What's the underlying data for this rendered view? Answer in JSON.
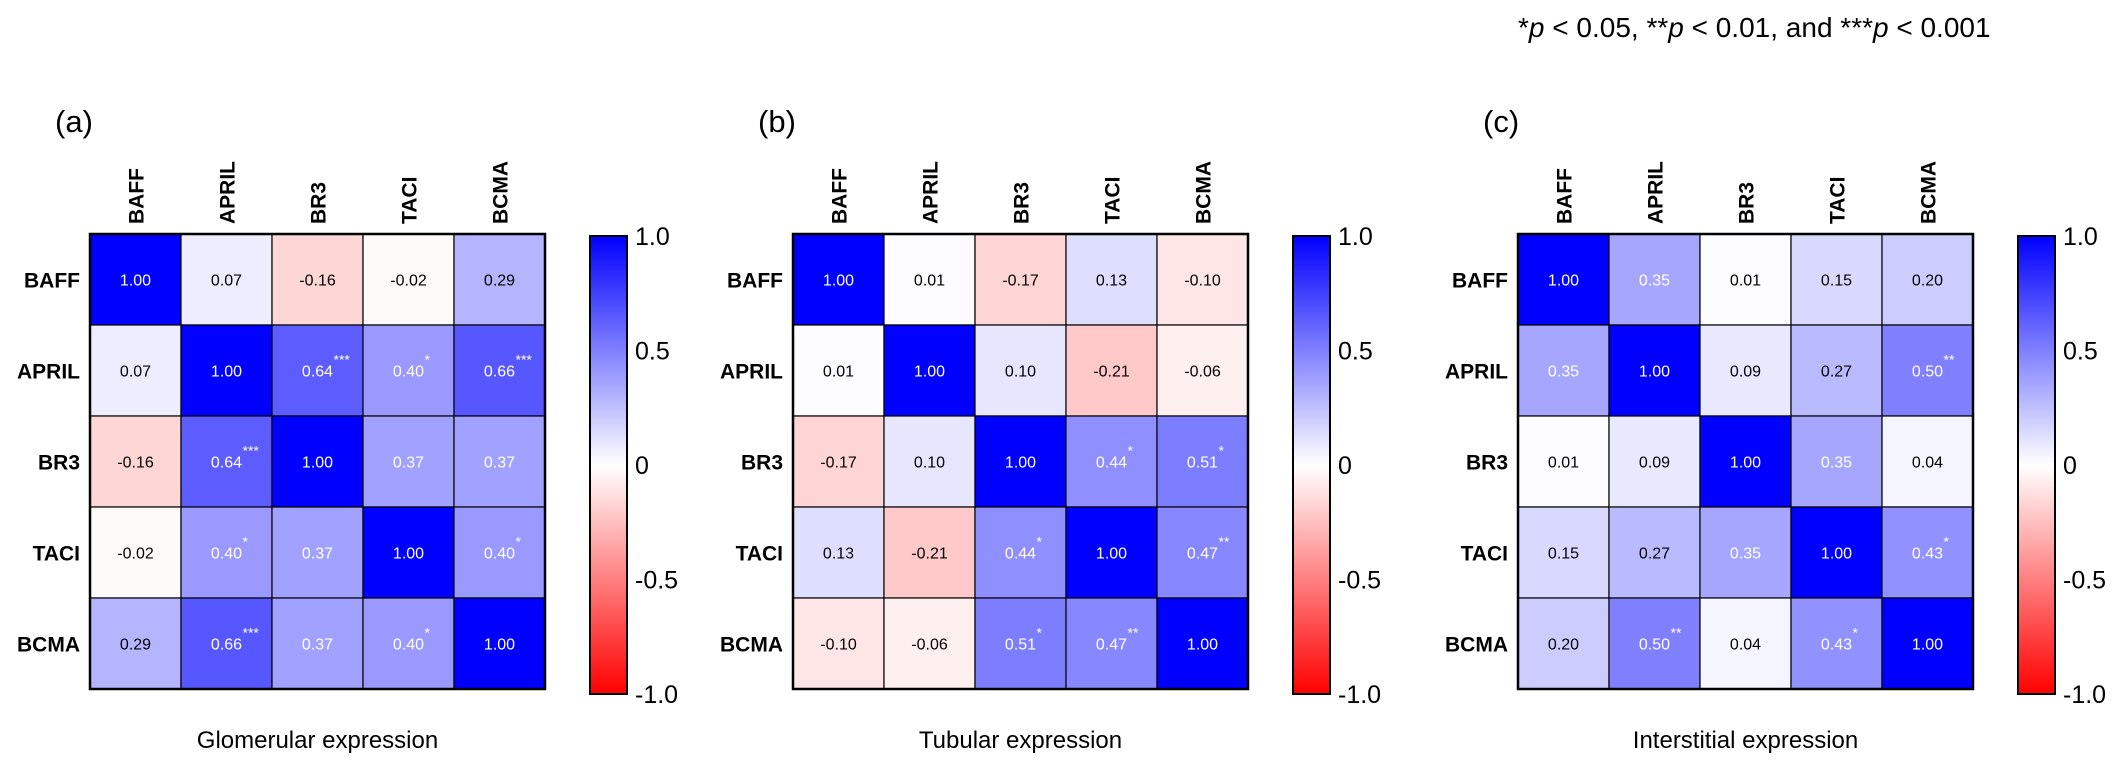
{
  "significance_note": {
    "p1_stars": "*",
    "p1_value": " < 0.05,  ",
    "p2_stars": "**",
    "p2_value": " < 0.01, and ",
    "p3_stars": "***",
    "p3_value": " < 0.001",
    "p_symbol": "p"
  },
  "colors": {
    "positive": "#0000ff",
    "zero": "#ffffff",
    "negative": "#ff0000",
    "grid": "#000000"
  },
  "chart_data": [
    {
      "type": "heatmap",
      "panel_label": "(a)",
      "title": "Glomerular expression",
      "labels": [
        "BAFF",
        "APRIL",
        "BR3",
        "TACI",
        "BCMA"
      ],
      "colorbar": {
        "range": [
          -1.0,
          1.0
        ],
        "ticks": [
          "1.0",
          "0.5",
          "0",
          "-0.5",
          "-1.0"
        ],
        "tick_values": [
          1.0,
          0.5,
          0,
          -0.5,
          -1.0
        ]
      },
      "values": [
        [
          1.0,
          0.07,
          -0.16,
          -0.02,
          0.29
        ],
        [
          0.07,
          1.0,
          0.64,
          0.4,
          0.66
        ],
        [
          -0.16,
          0.64,
          1.0,
          0.37,
          0.37
        ],
        [
          -0.02,
          0.4,
          0.37,
          1.0,
          0.4
        ],
        [
          0.29,
          0.66,
          0.37,
          0.4,
          1.0
        ]
      ],
      "display": [
        [
          "1.00",
          "0.07",
          "-0.16",
          "-0.02",
          "0.29"
        ],
        [
          "0.07",
          "1.00",
          "0.64",
          "0.40",
          "0.66"
        ],
        [
          "-0.16",
          "0.64",
          "1.00",
          "0.37",
          "0.37"
        ],
        [
          "-0.02",
          "0.40",
          "0.37",
          "1.00",
          "0.40"
        ],
        [
          "0.29",
          "0.66",
          "0.37",
          "0.40",
          "1.00"
        ]
      ],
      "stars": [
        [
          "",
          "",
          "",
          "",
          ""
        ],
        [
          "",
          "",
          "***",
          "*",
          "***"
        ],
        [
          "",
          "***",
          "",
          "",
          ""
        ],
        [
          "",
          "*",
          "",
          "",
          "*"
        ],
        [
          "",
          "***",
          "",
          "*",
          ""
        ]
      ]
    },
    {
      "type": "heatmap",
      "panel_label": "(b)",
      "title": "Tubular expression",
      "labels": [
        "BAFF",
        "APRIL",
        "BR3",
        "TACI",
        "BCMA"
      ],
      "colorbar": {
        "range": [
          -1.0,
          1.0
        ],
        "ticks": [
          "1.0",
          "0.5",
          "0",
          "-0.5",
          "-1.0"
        ],
        "tick_values": [
          1.0,
          0.5,
          0,
          -0.5,
          -1.0
        ]
      },
      "values": [
        [
          1.0,
          0.01,
          -0.17,
          0.13,
          -0.1
        ],
        [
          0.01,
          1.0,
          0.1,
          -0.21,
          -0.06
        ],
        [
          -0.17,
          0.1,
          1.0,
          0.44,
          0.51
        ],
        [
          0.13,
          -0.21,
          0.44,
          1.0,
          0.47
        ],
        [
          -0.1,
          -0.06,
          0.51,
          0.47,
          1.0
        ]
      ],
      "display": [
        [
          "1.00",
          "0.01",
          "-0.17",
          "0.13",
          "-0.10"
        ],
        [
          "0.01",
          "1.00",
          "0.10",
          "-0.21",
          "-0.06"
        ],
        [
          "-0.17",
          "0.10",
          "1.00",
          "0.44",
          "0.51"
        ],
        [
          "0.13",
          "-0.21",
          "0.44",
          "1.00",
          "0.47"
        ],
        [
          "-0.10",
          "-0.06",
          "0.51",
          "0.47",
          "1.00"
        ]
      ],
      "stars": [
        [
          "",
          "",
          "",
          "",
          ""
        ],
        [
          "",
          "",
          "",
          "",
          ""
        ],
        [
          "",
          "",
          "",
          "*",
          "*"
        ],
        [
          "",
          "",
          "*",
          "",
          "**"
        ],
        [
          "",
          "",
          "*",
          "**",
          ""
        ]
      ]
    },
    {
      "type": "heatmap",
      "panel_label": "(c)",
      "title": "Interstitial expression",
      "labels": [
        "BAFF",
        "APRIL",
        "BR3",
        "TACI",
        "BCMA"
      ],
      "colorbar": {
        "range": [
          -1.0,
          1.0
        ],
        "ticks": [
          "1.0",
          "0.5",
          "0",
          "-0.5",
          "-1.0"
        ],
        "tick_values": [
          1.0,
          0.5,
          0,
          -0.5,
          -1.0
        ]
      },
      "values": [
        [
          1.0,
          0.35,
          0.01,
          0.15,
          0.2
        ],
        [
          0.35,
          1.0,
          0.09,
          0.27,
          0.5
        ],
        [
          0.01,
          0.09,
          1.0,
          0.35,
          0.04
        ],
        [
          0.15,
          0.27,
          0.35,
          1.0,
          0.43
        ],
        [
          0.2,
          0.5,
          0.04,
          0.43,
          1.0
        ]
      ],
      "display": [
        [
          "1.00",
          "0.35",
          "0.01",
          "0.15",
          "0.20"
        ],
        [
          "0.35",
          "1.00",
          "0.09",
          "0.27",
          "0.50"
        ],
        [
          "0.01",
          "0.09",
          "1.00",
          "0.35",
          "0.04"
        ],
        [
          "0.15",
          "0.27",
          "0.35",
          "1.00",
          "0.43"
        ],
        [
          "0.20",
          "0.50",
          "0.04",
          "0.43",
          "1.00"
        ]
      ],
      "stars": [
        [
          "",
          "",
          "",
          "",
          ""
        ],
        [
          "",
          "",
          "",
          "",
          "**"
        ],
        [
          "",
          "",
          "",
          "",
          ""
        ],
        [
          "",
          "",
          "",
          "",
          "*"
        ],
        [
          "",
          "**",
          "",
          "*",
          ""
        ]
      ]
    }
  ]
}
